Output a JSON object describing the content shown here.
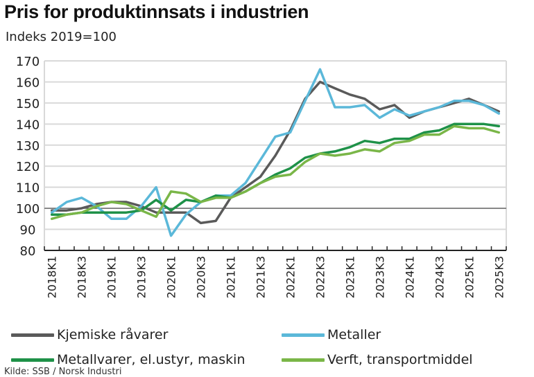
{
  "chart_data": {
    "type": "line",
    "title": "Pris for produktinnsats i industrien",
    "subtitle": "Indeks 2019=100",
    "xlabel": "",
    "ylabel": "Indeks 2019=100",
    "ylim": [
      80,
      170
    ],
    "yticks": [
      80,
      90,
      100,
      110,
      120,
      130,
      140,
      150,
      160,
      170
    ],
    "grid": true,
    "reference_line": 100,
    "legend_position": "bottom",
    "x": [
      "2018K1",
      "2018K2",
      "2018K3",
      "2018K4",
      "2019K1",
      "2019K2",
      "2019K3",
      "2019K4",
      "2020K1",
      "2020K2",
      "2020K3",
      "2020K4",
      "2021K1",
      "2021K2",
      "2021K3",
      "2021K4",
      "2022K1",
      "2022K2",
      "2022K3",
      "2022K4",
      "2023K1",
      "2023K2",
      "2023K3",
      "2023K4",
      "2024K1",
      "2024K2",
      "2024K3",
      "2024K4",
      "2025K1",
      "2025K2",
      "2025K3"
    ],
    "xtick_labels": [
      "2018K1",
      "2018K3",
      "2019K1",
      "2019K3",
      "2020K1",
      "2020K3",
      "2021K1",
      "2021K3",
      "2022K1",
      "2022K3",
      "2023K1",
      "2023K3",
      "2024K1",
      "2024K3",
      "2025K1",
      "2025K3"
    ],
    "series": [
      {
        "name": "Kjemiske råvarer",
        "color": "#5a5a5a",
        "values": [
          99,
          99,
          100,
          102,
          103,
          103,
          101,
          98,
          98,
          98,
          93,
          94,
          105,
          110,
          115,
          125,
          137,
          152,
          160,
          157,
          154,
          152,
          147,
          149,
          143,
          146,
          148,
          150,
          152,
          149,
          146
        ]
      },
      {
        "name": "Metaller",
        "color": "#5bb8d9",
        "values": [
          98,
          103,
          105,
          101,
          95,
          95,
          101,
          110,
          87,
          97,
          103,
          106,
          106,
          112,
          123,
          134,
          136,
          151,
          166,
          148,
          148,
          149,
          143,
          147,
          144,
          146,
          148,
          151,
          151,
          149,
          145
        ]
      },
      {
        "name": "Metallvarer, el.ustyr, maskin",
        "color": "#1e9148",
        "values": [
          97,
          97,
          98,
          98,
          98,
          98,
          99,
          104,
          99,
          104,
          103,
          106,
          105,
          108,
          112,
          116,
          119,
          124,
          126,
          127,
          129,
          132,
          131,
          133,
          133,
          136,
          137,
          140,
          140,
          140,
          139
        ]
      },
      {
        "name": "Verft, transportmiddel",
        "color": "#7ab648",
        "values": [
          95,
          97,
          98,
          101,
          103,
          102,
          99,
          96,
          108,
          107,
          103,
          105,
          105,
          108,
          112,
          115,
          116,
          122,
          126,
          125,
          126,
          128,
          127,
          131,
          132,
          135,
          135,
          139,
          138,
          138,
          136
        ]
      }
    ],
    "source": "Kilde: SSB / Norsk Industri"
  }
}
